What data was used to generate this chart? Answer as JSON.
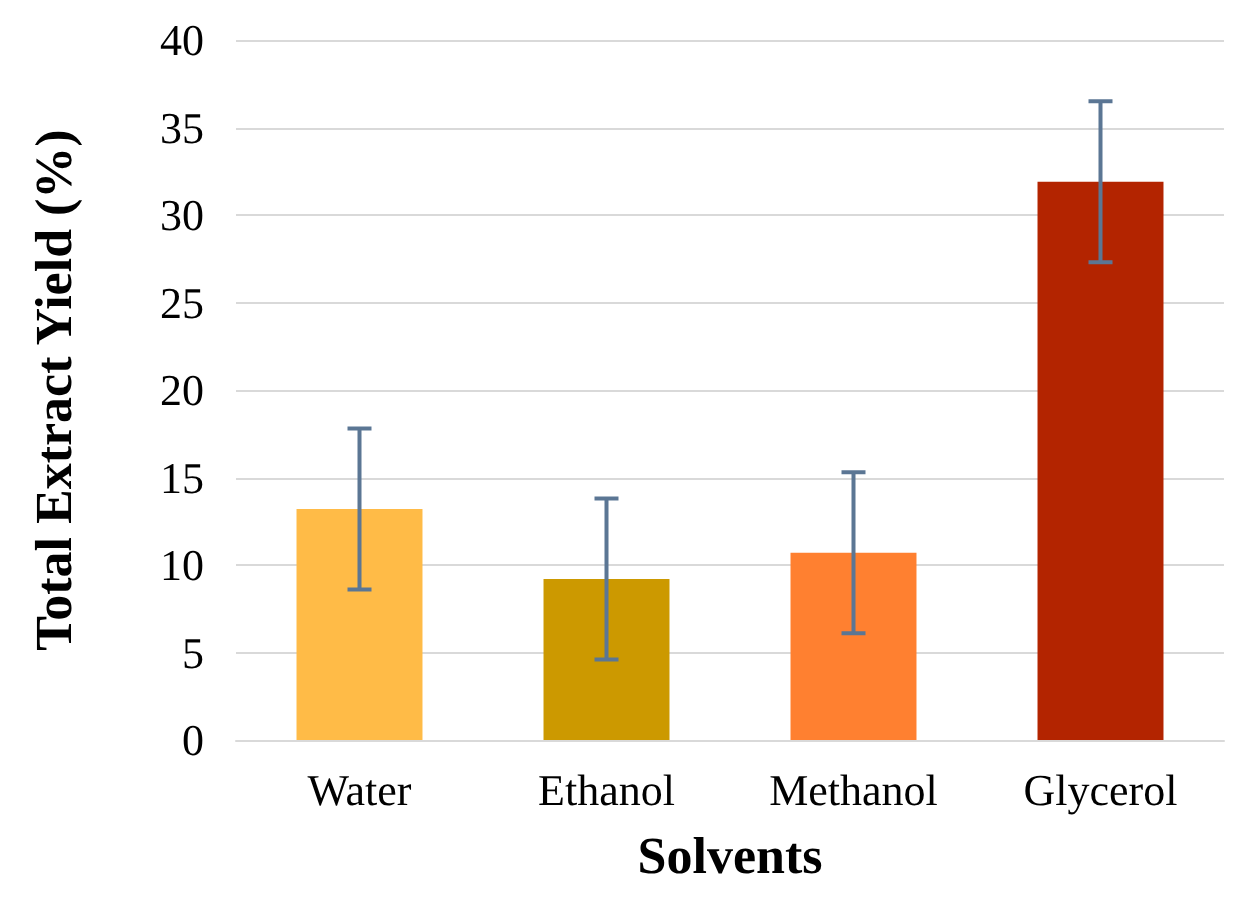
{
  "chart_data": {
    "type": "bar",
    "xlabel": "Solvents",
    "ylabel": "Total Extract Yield (%)",
    "categories": [
      "Water",
      "Ethanol",
      "Methanol",
      "Glycerol"
    ],
    "values": [
      13.2,
      9.2,
      10.7,
      31.9
    ],
    "errors": [
      4.6,
      4.6,
      4.6,
      4.6
    ],
    "colors": [
      "#ffbb47",
      "#cc9900",
      "#ff8030",
      "#b32400"
    ],
    "ylim": [
      0,
      40
    ],
    "yticks": [
      0,
      5,
      10,
      15,
      20,
      25,
      30,
      35,
      40
    ],
    "grid": "y"
  }
}
